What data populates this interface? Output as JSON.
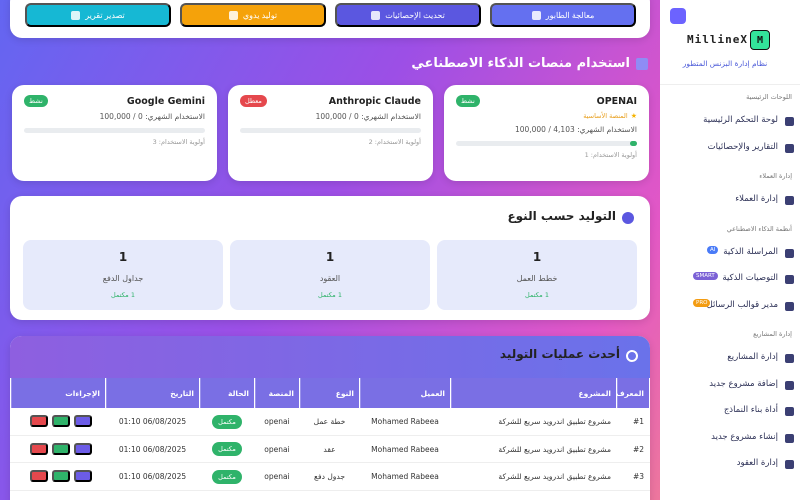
{
  "sidebar": {
    "brand": "MillineX",
    "logo": "M",
    "tagline": "نظام إدارة البزنس المتطور",
    "sections": [
      {
        "title": "اللوحات الرئيسية",
        "items": [
          {
            "label": "لوحة التحكم الرئيسية"
          },
          {
            "label": "التقارير والإحصائيات"
          }
        ]
      },
      {
        "title": "إدارة العملاء",
        "items": [
          {
            "label": "إدارة العملاء"
          }
        ]
      },
      {
        "title": "أنظمة الذكاء الاصطناعي",
        "items": [
          {
            "label": "المراسلة الذكية",
            "badge": "AI",
            "badge_color": "#4a7bf7"
          },
          {
            "label": "التوصيات الذكية",
            "badge": "SMART",
            "badge_color": "#7b61d6"
          },
          {
            "label": "مدير قوالب الرسائل",
            "badge": "PRO",
            "badge_color": "#f39c12"
          }
        ]
      },
      {
        "title": "إدارة المشاريع",
        "items": [
          {
            "label": "إدارة المشاريع"
          },
          {
            "label": "إضافة مشروع جديد"
          },
          {
            "label": "أداة بناء النماذج"
          },
          {
            "label": "إنشاء مشروع جديد"
          },
          {
            "label": "إدارة العقود"
          }
        ]
      }
    ]
  },
  "toolbar": {
    "buttons": [
      {
        "label": "معالجة الطابور",
        "color": "#6470f0"
      },
      {
        "label": "تحديث الإحصائيات",
        "color": "#5b57e0"
      },
      {
        "label": "توليد يدوي",
        "color": "#f5a20a"
      },
      {
        "label": "تصدير تقرير",
        "color": "#16b8d4"
      }
    ]
  },
  "platforms": {
    "title": "استخدام منصات الذكاء الاصطناعي",
    "cards": [
      {
        "name": "OPENAI",
        "status": "نشط",
        "status_color": "#2fb36a",
        "primary": "المنصة الأساسية",
        "usage_label": "الاستخدام الشهري:",
        "used": {
          "value": 4103,
          "label": "4,103"
        },
        "separator": "/",
        "limit": {
          "value": 100000,
          "label": "100,000"
        },
        "priority": "أولوية الاستخدام: 1"
      },
      {
        "name": "Anthropic Claude",
        "status": "معطل",
        "status_color": "#e5484d",
        "usage_label": "الاستخدام الشهري:",
        "used": 0,
        "separator": "/",
        "limit": {
          "value": 100000,
          "label": "100,000"
        },
        "priority": "أولوية الاستخدام: 2"
      },
      {
        "name": "Google Gemini",
        "status": "نشط",
        "status_color": "#2fb36a",
        "usage_label": "الاستخدام الشهري:",
        "used": 0,
        "separator": "/",
        "limit": {
          "value": 100000,
          "label": "100,000"
        },
        "priority": "أولوية الاستخدام: 3"
      }
    ]
  },
  "by_type": {
    "title": "التوليد حسب النوع",
    "items": [
      {
        "count": 1,
        "label": "خطط العمل",
        "done": "1 مكتمل"
      },
      {
        "count": 1,
        "label": "العقود",
        "done": "1 مكتمل"
      },
      {
        "count": 1,
        "label": "جداول الدفع",
        "done": "1 مكتمل"
      }
    ]
  },
  "recent": {
    "title": "أحدث عمليات التوليد",
    "columns": [
      "المعرف",
      "المشروع",
      "العميل",
      "النوع",
      "المنصة",
      "الحالة",
      "التاريخ",
      "الإجراءات"
    ],
    "rows": [
      [
        "#1",
        "مشروع تطبيق اندرويد سريع للشركة",
        "Mohamed Rabeea",
        "خطة عمل",
        "openai",
        "مكتمل",
        "06/08/2025 01:10"
      ],
      [
        "#2",
        "مشروع تطبيق اندرويد سريع للشركة",
        "Mohamed Rabeea",
        "عقد",
        "openai",
        "مكتمل",
        "06/08/2025 01:10"
      ],
      [
        "#3",
        "مشروع تطبيق اندرويد سريع للشركة",
        "Mohamed Rabeea",
        "جدول دفع",
        "openai",
        "مكتمل",
        "06/08/2025 01:10"
      ]
    ]
  }
}
